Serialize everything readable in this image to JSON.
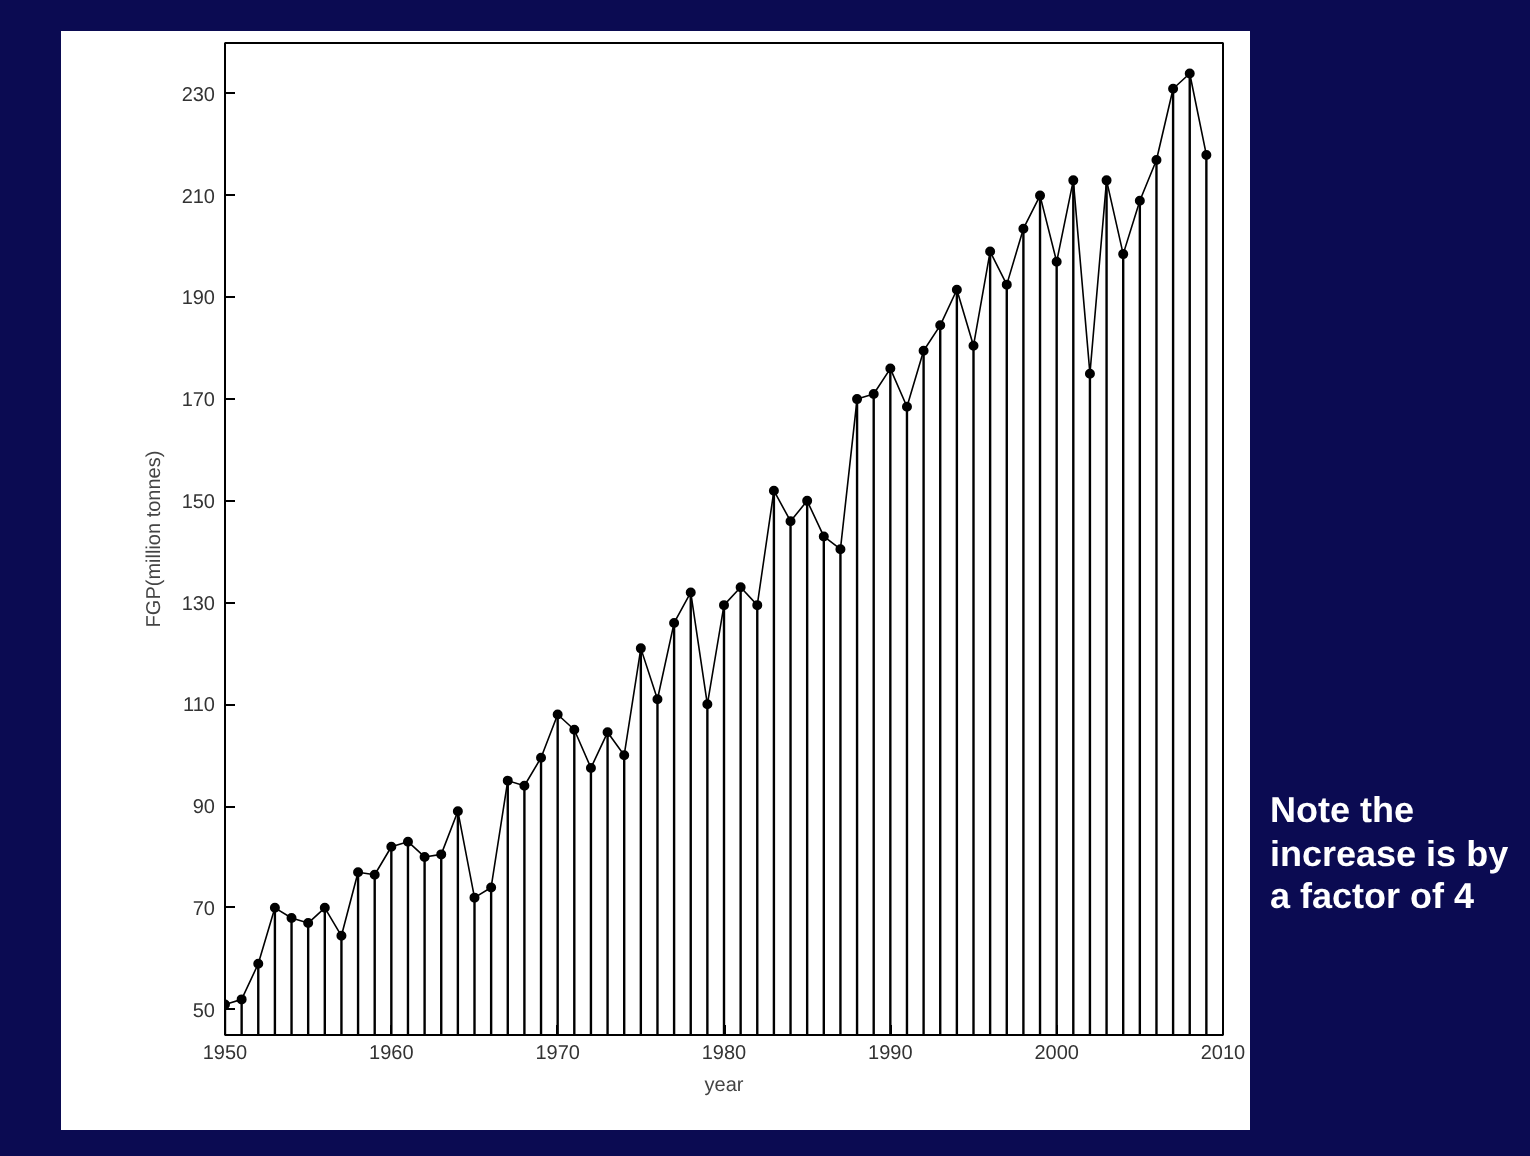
{
  "chart_data": {
    "type": "lollipop",
    "xlabel": "year",
    "ylabel": "FGP(million tonnes)",
    "x": [
      1950,
      1951,
      1952,
      1953,
      1954,
      1955,
      1956,
      1957,
      1958,
      1959,
      1960,
      1961,
      1962,
      1963,
      1964,
      1965,
      1966,
      1967,
      1968,
      1969,
      1970,
      1971,
      1972,
      1973,
      1974,
      1975,
      1976,
      1977,
      1978,
      1979,
      1980,
      1981,
      1982,
      1983,
      1984,
      1985,
      1986,
      1987,
      1988,
      1989,
      1990,
      1991,
      1992,
      1993,
      1994,
      1995,
      1996,
      1997,
      1998,
      1999,
      2000,
      2001,
      2002,
      2003,
      2004,
      2005,
      2006,
      2007,
      2008,
      2009
    ],
    "series": [
      {
        "color": "#000000",
        "values": [
          51,
          52,
          59,
          70,
          68,
          67,
          70,
          64.5,
          77,
          76.5,
          82,
          83,
          80,
          80.5,
          89,
          72,
          74,
          95,
          94,
          99.5,
          108,
          105,
          97.5,
          104.5,
          100,
          121,
          111,
          126,
          132,
          110,
          129.5,
          133,
          129.5,
          152,
          146,
          150,
          143,
          140.5,
          170,
          171,
          176,
          168.5,
          179.5,
          184.5,
          191.5,
          180.5,
          199,
          192.5,
          203.5,
          210,
          197,
          213,
          175,
          213,
          198.5,
          209,
          217,
          231,
          234,
          218
        ]
      },
      {
        "type": "line",
        "color": "#000000",
        "values": [
          51,
          52,
          59,
          70,
          68,
          67,
          70,
          64.5,
          77,
          76.5,
          82,
          83,
          80,
          80.5,
          89,
          72,
          74,
          95,
          94,
          99.5,
          108,
          105,
          97.5,
          104.5,
          100,
          121,
          111,
          126,
          132,
          110,
          129.5,
          133,
          129.5,
          152,
          146,
          150,
          143,
          140.5,
          170,
          171,
          176,
          168.5,
          179.5,
          184.5,
          191.5,
          180.5,
          199,
          192.5,
          203.5,
          210,
          197,
          213,
          175,
          213,
          198.5,
          209,
          217,
          231,
          234,
          218
        ]
      }
    ],
    "line_style": "solid",
    "xlim": [
      1950,
      2010
    ],
    "ylim": [
      45,
      240
    ],
    "xticks": [
      1950,
      1960,
      1970,
      1980,
      1990,
      2000,
      2010
    ],
    "yticks": [
      50,
      70,
      90,
      110,
      130,
      150,
      170,
      190,
      210,
      230
    ],
    "annotations": [
      "Note the increase is by a factor of 4"
    ]
  }
}
